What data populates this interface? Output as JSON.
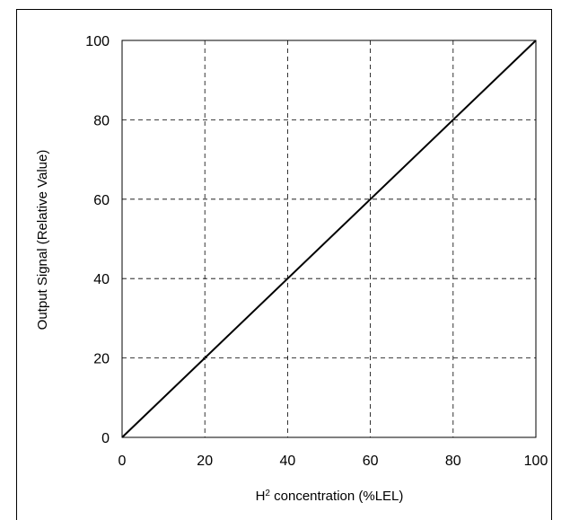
{
  "chart_data": {
    "type": "line",
    "title": "",
    "xlabel": {
      "prefix": "H",
      "subscript": "2",
      "rest": " concentration (%LEL)"
    },
    "ylabel": "Output Signal (Relative Value)",
    "xlim": [
      0,
      100
    ],
    "ylim": [
      0,
      100
    ],
    "x_ticks": [
      "0",
      "20",
      "40",
      "60",
      "80",
      "100"
    ],
    "y_ticks": [
      "0",
      "20",
      "40",
      "60",
      "80",
      "100"
    ],
    "grid": true,
    "grid_style": "dashed",
    "line_color": "#000000",
    "series": [
      {
        "x": [
          0,
          100
        ],
        "y": [
          0,
          100
        ]
      }
    ]
  }
}
